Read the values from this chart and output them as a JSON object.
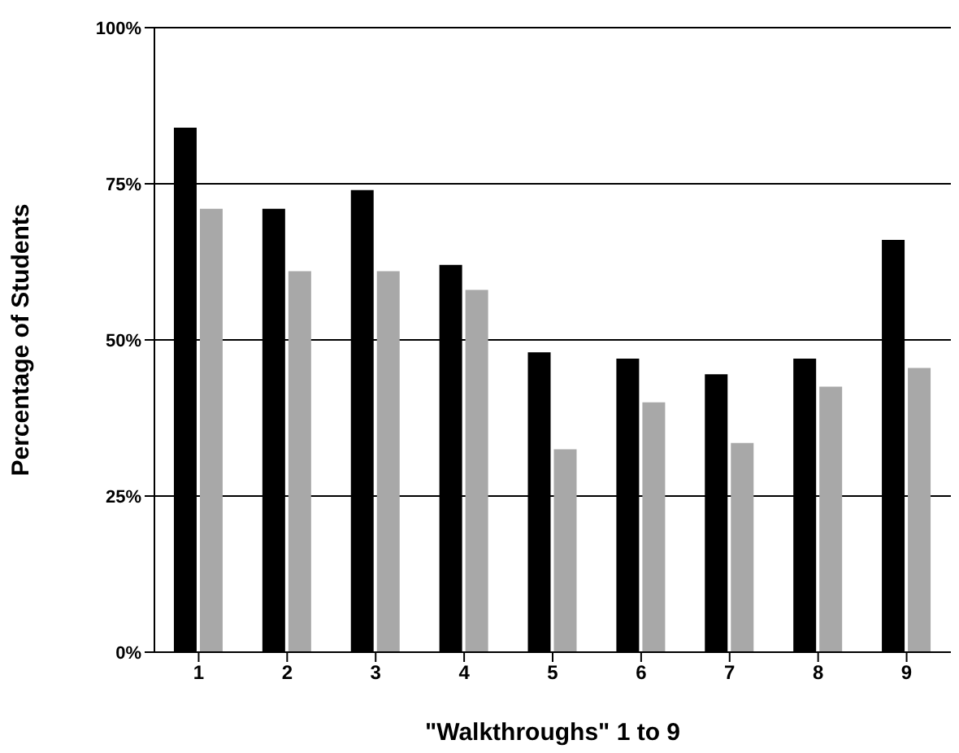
{
  "chart_data": {
    "type": "bar",
    "xlabel": "\"Walkthroughs\" 1 to 9",
    "ylabel": "Percentage of Students",
    "categories": [
      "1",
      "2",
      "3",
      "4",
      "5",
      "6",
      "7",
      "8",
      "9"
    ],
    "series": [
      {
        "color": "#000000",
        "values": [
          84,
          71,
          74,
          62,
          48,
          47,
          44.5,
          47,
          66
        ]
      },
      {
        "color": "#a8a8a8",
        "values": [
          71,
          61,
          61,
          58,
          32.5,
          40,
          33.5,
          42.5,
          45.5
        ]
      }
    ],
    "ylim": [
      0,
      100
    ],
    "yticks": [
      {
        "value": 0,
        "label": "0%"
      },
      {
        "value": 25,
        "label": "25%"
      },
      {
        "value": 50,
        "label": "50%"
      },
      {
        "value": 75,
        "label": "75%"
      },
      {
        "value": 100,
        "label": "100%"
      }
    ],
    "grid": "y"
  }
}
